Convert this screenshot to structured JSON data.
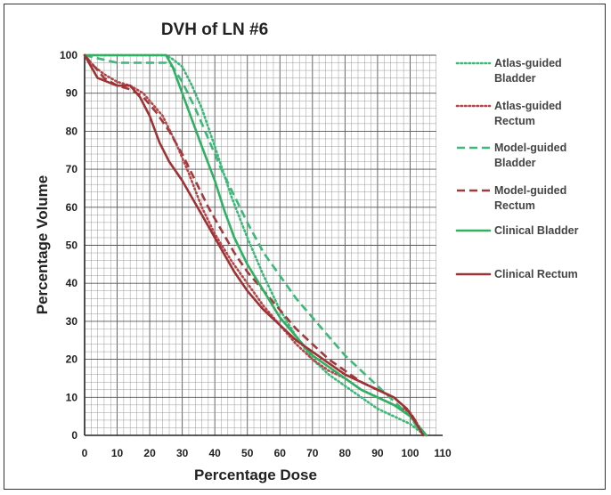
{
  "chart_data": {
    "type": "line",
    "title": "DVH of LN #6",
    "xlabel": "Percentage Dose",
    "ylabel": "Percentage Volume",
    "xlim": [
      0,
      110
    ],
    "ylim": [
      0,
      100
    ],
    "xticks": [
      0,
      10,
      20,
      30,
      40,
      50,
      60,
      70,
      80,
      90,
      100,
      110
    ],
    "yticks": [
      0,
      10,
      20,
      30,
      40,
      50,
      60,
      70,
      80,
      90,
      100
    ],
    "grid": true,
    "legend_position": "right",
    "series": [
      {
        "name": "Atlas-guided Bladder",
        "color": "#3cb878",
        "dash": "dotted",
        "points": [
          [
            0,
            100
          ],
          [
            10,
            100
          ],
          [
            20,
            100
          ],
          [
            25,
            100
          ],
          [
            27,
            99
          ],
          [
            30,
            97
          ],
          [
            33,
            92
          ],
          [
            36,
            86
          ],
          [
            40,
            76
          ],
          [
            45,
            63
          ],
          [
            50,
            52
          ],
          [
            55,
            42
          ],
          [
            60,
            33
          ],
          [
            65,
            26
          ],
          [
            70,
            20
          ],
          [
            75,
            16
          ],
          [
            80,
            13
          ],
          [
            85,
            10
          ],
          [
            90,
            7
          ],
          [
            95,
            5
          ],
          [
            100,
            3
          ],
          [
            103,
            1
          ],
          [
            105,
            0
          ]
        ]
      },
      {
        "name": "Atlas-guided Rectum",
        "color": "#b5474a",
        "dash": "dotted",
        "points": [
          [
            0,
            100
          ],
          [
            3,
            97
          ],
          [
            6,
            95
          ],
          [
            10,
            93
          ],
          [
            14,
            92
          ],
          [
            18,
            90
          ],
          [
            20,
            88
          ],
          [
            24,
            84
          ],
          [
            28,
            77
          ],
          [
            32,
            69
          ],
          [
            36,
            60
          ],
          [
            40,
            53
          ],
          [
            45,
            46
          ],
          [
            50,
            40
          ],
          [
            55,
            34
          ],
          [
            60,
            29
          ],
          [
            65,
            24
          ],
          [
            70,
            20
          ],
          [
            75,
            17
          ],
          [
            80,
            15
          ],
          [
            85,
            12
          ],
          [
            90,
            10
          ],
          [
            95,
            8
          ],
          [
            100,
            6
          ],
          [
            103,
            2
          ],
          [
            105,
            0
          ]
        ]
      },
      {
        "name": "Model-guided Bladder",
        "color": "#3cb878",
        "dash": "dashed",
        "points": [
          [
            0,
            100
          ],
          [
            5,
            99
          ],
          [
            10,
            98
          ],
          [
            15,
            98
          ],
          [
            20,
            98
          ],
          [
            25,
            98
          ],
          [
            27,
            97
          ],
          [
            30,
            93
          ],
          [
            34,
            86
          ],
          [
            38,
            78
          ],
          [
            42,
            70
          ],
          [
            46,
            63
          ],
          [
            50,
            56
          ],
          [
            55,
            48
          ],
          [
            60,
            42
          ],
          [
            65,
            36
          ],
          [
            70,
            31
          ],
          [
            75,
            26
          ],
          [
            80,
            21
          ],
          [
            85,
            17
          ],
          [
            90,
            13
          ],
          [
            95,
            9
          ],
          [
            100,
            5
          ],
          [
            103,
            1
          ],
          [
            105,
            0
          ]
        ]
      },
      {
        "name": "Model-guided Rectum",
        "color": "#a23a3c",
        "dash": "dashed",
        "points": [
          [
            0,
            100
          ],
          [
            3,
            97
          ],
          [
            6,
            94
          ],
          [
            10,
            92
          ],
          [
            14,
            91
          ],
          [
            18,
            89
          ],
          [
            22,
            85
          ],
          [
            26,
            80
          ],
          [
            30,
            74
          ],
          [
            34,
            67
          ],
          [
            38,
            60
          ],
          [
            42,
            54
          ],
          [
            46,
            48
          ],
          [
            50,
            43
          ],
          [
            55,
            38
          ],
          [
            60,
            33
          ],
          [
            65,
            28
          ],
          [
            70,
            24
          ],
          [
            75,
            20
          ],
          [
            80,
            17
          ],
          [
            85,
            14
          ],
          [
            90,
            12
          ],
          [
            95,
            10
          ],
          [
            100,
            6
          ],
          [
            103,
            2
          ],
          [
            105,
            0
          ]
        ]
      },
      {
        "name": "Clinical Bladder",
        "color": "#2fb063",
        "dash": "solid",
        "points": [
          [
            0,
            100
          ],
          [
            10,
            100
          ],
          [
            20,
            100
          ],
          [
            25,
            100
          ],
          [
            27,
            97
          ],
          [
            30,
            90
          ],
          [
            33,
            83
          ],
          [
            36,
            76
          ],
          [
            40,
            67
          ],
          [
            43,
            59
          ],
          [
            46,
            52
          ],
          [
            50,
            45
          ],
          [
            55,
            38
          ],
          [
            60,
            31
          ],
          [
            65,
            26
          ],
          [
            70,
            21
          ],
          [
            75,
            18
          ],
          [
            80,
            15
          ],
          [
            85,
            12
          ],
          [
            90,
            10
          ],
          [
            95,
            8
          ],
          [
            100,
            5
          ],
          [
            103,
            2
          ],
          [
            105,
            0
          ]
        ]
      },
      {
        "name": "Clinical Rectum",
        "color": "#9e3234",
        "dash": "solid",
        "points": [
          [
            0,
            100
          ],
          [
            2,
            97
          ],
          [
            4,
            94
          ],
          [
            7,
            93
          ],
          [
            10,
            92
          ],
          [
            14,
            92
          ],
          [
            17,
            89
          ],
          [
            20,
            84
          ],
          [
            23,
            77
          ],
          [
            26,
            72
          ],
          [
            30,
            67
          ],
          [
            34,
            61
          ],
          [
            38,
            55
          ],
          [
            42,
            49
          ],
          [
            46,
            43
          ],
          [
            50,
            38
          ],
          [
            55,
            33
          ],
          [
            60,
            29
          ],
          [
            65,
            25
          ],
          [
            70,
            22
          ],
          [
            75,
            19
          ],
          [
            80,
            16
          ],
          [
            85,
            14
          ],
          [
            90,
            12
          ],
          [
            95,
            10
          ],
          [
            99,
            7
          ],
          [
            102,
            3
          ],
          [
            104,
            0
          ]
        ]
      }
    ]
  }
}
